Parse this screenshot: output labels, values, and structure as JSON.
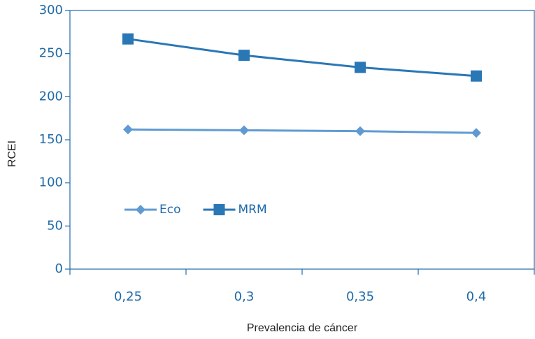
{
  "chart_data": {
    "type": "line",
    "x_label": "Prevalencia de cáncer",
    "y_label": "RCEI",
    "categories": [
      "0,25",
      "0,3",
      "0,35",
      "0,4"
    ],
    "series": [
      {
        "name": "Eco",
        "color": "#5f9bd2",
        "marker": "diamond",
        "values": [
          162,
          161,
          160,
          158
        ]
      },
      {
        "name": "MRM",
        "color": "#2a77b6",
        "marker": "square",
        "values": [
          267,
          248,
          234,
          224
        ]
      }
    ],
    "ylim": [
      0,
      300
    ],
    "yticks": [
      0,
      50,
      100,
      150,
      200,
      250,
      300
    ],
    "legend": "center left"
  }
}
